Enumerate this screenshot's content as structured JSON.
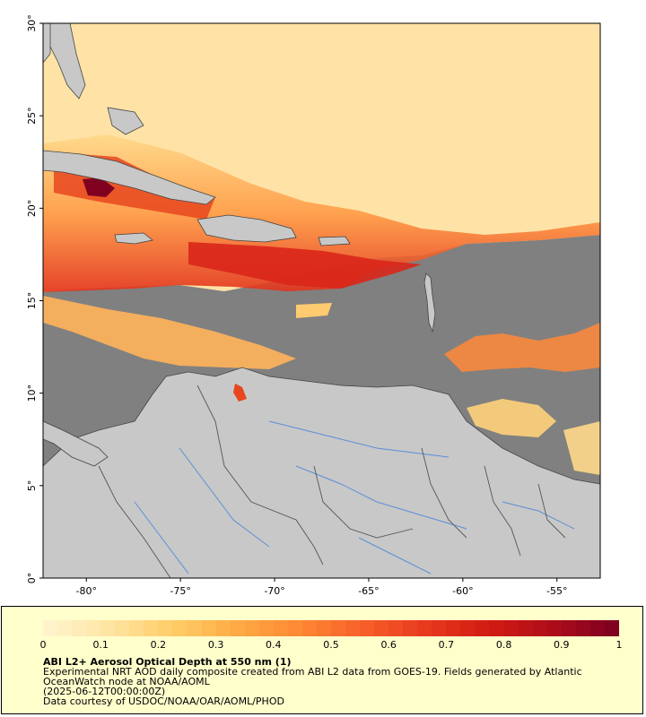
{
  "map": {
    "lat_ticks": [
      "0°",
      "5°",
      "10°",
      "15°",
      "20°",
      "25°",
      "30°"
    ],
    "lon_ticks": [
      "-80°",
      "-75°",
      "-70°",
      "-65°",
      "-60°",
      "-55°"
    ],
    "lon_range": [
      -82.3,
      -52.7
    ],
    "lat_range": [
      0,
      30
    ],
    "colors": {
      "land": "#c8c8c8",
      "no_data": "#808080",
      "coastline": "#444444",
      "rivers": "#5b8fd6",
      "borders": "#555555"
    }
  },
  "legend": {
    "colorbar_ticks": [
      "0",
      "0.1",
      "0.2",
      "0.3",
      "0.4",
      "0.5",
      "0.6",
      "0.7",
      "0.8",
      "0.9",
      "1"
    ],
    "colorbar_stops": [
      "#fff3cc",
      "#ffe4a0",
      "#ffcc66",
      "#ffaa44",
      "#ff8833",
      "#f7602a",
      "#e83a1e",
      "#d31c12",
      "#b00d1a",
      "#800020"
    ],
    "title": "ABI L2+ Aerosol Optical Depth at 550 nm (1)",
    "description": "Experimental NRT AOD daily composite created from ABI L2 data from GOES-19. Fields generated by Atlantic OceanWatch node at NOAA/AOML",
    "date": "(2025-06-12T00:00:00Z)",
    "credit": "Data courtesy of USDOC/NOAA/OAR/AOML/PHOD"
  }
}
